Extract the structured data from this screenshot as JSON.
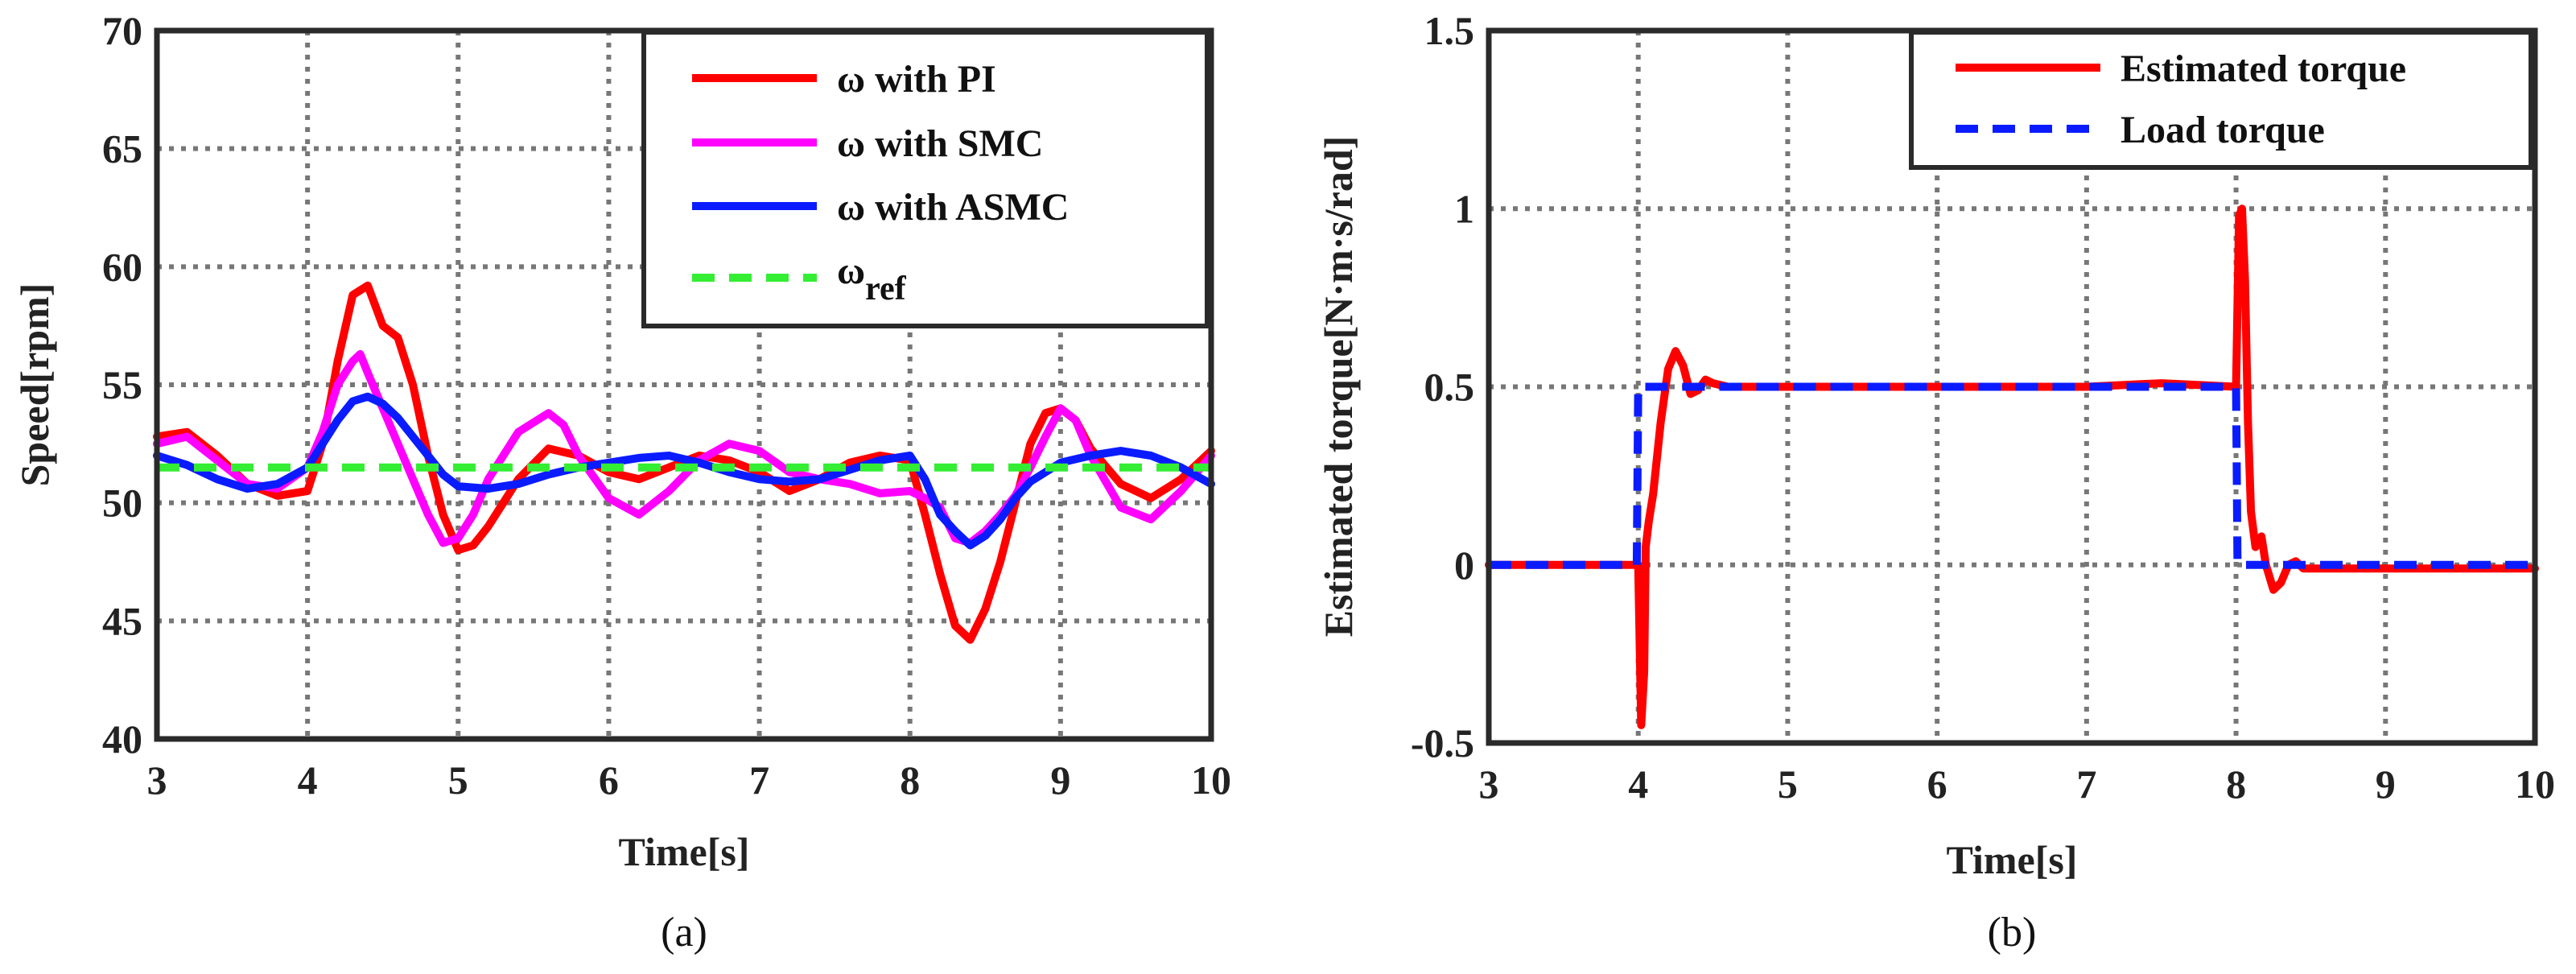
{
  "chart_data": [
    {
      "id": "a",
      "type": "line",
      "caption": "(a)",
      "xlabel": "Time[s]",
      "ylabel": "Speed[rpm]",
      "xlim": [
        3,
        10
      ],
      "ylim": [
        40,
        70
      ],
      "xticks": [
        "3",
        "4",
        "5",
        "6",
        "7",
        "8",
        "9",
        "10"
      ],
      "yticks": [
        "40",
        "45",
        "50",
        "55",
        "60",
        "65",
        "70"
      ],
      "grid": true,
      "legend_position": "top-right",
      "series": [
        {
          "name": "ω with PI",
          "legend": "ω with PI",
          "color": "#ff0000",
          "dash": "solid",
          "x": [
            3.0,
            3.2,
            3.4,
            3.6,
            3.8,
            4.0,
            4.1,
            4.2,
            4.3,
            4.4,
            4.5,
            4.6,
            4.7,
            4.8,
            4.9,
            5.0,
            5.1,
            5.2,
            5.4,
            5.6,
            5.8,
            6.0,
            6.2,
            6.4,
            6.6,
            6.8,
            7.0,
            7.2,
            7.4,
            7.6,
            7.8,
            8.0,
            8.1,
            8.2,
            8.3,
            8.4,
            8.5,
            8.6,
            8.7,
            8.8,
            8.9,
            9.0,
            9.1,
            9.2,
            9.4,
            9.6,
            9.8,
            10.0
          ],
          "y": [
            52.8,
            53.0,
            52.0,
            50.8,
            50.3,
            50.5,
            52.5,
            56.0,
            58.8,
            59.2,
            57.5,
            57.0,
            55.0,
            52.0,
            49.5,
            48.0,
            48.2,
            49.0,
            51.0,
            52.3,
            52.0,
            51.3,
            51.0,
            51.5,
            52.0,
            51.8,
            51.3,
            50.5,
            51.0,
            51.7,
            52.0,
            51.8,
            49.5,
            47.0,
            44.8,
            44.2,
            45.5,
            47.5,
            50.0,
            52.5,
            53.8,
            54.0,
            53.5,
            52.3,
            50.8,
            50.2,
            51.0,
            52.2
          ]
        },
        {
          "name": "ω with SMC",
          "legend": "ω with SMC",
          "color": "#ff00ff",
          "dash": "solid",
          "x": [
            3.0,
            3.2,
            3.4,
            3.6,
            3.8,
            4.0,
            4.1,
            4.2,
            4.3,
            4.35,
            4.4,
            4.5,
            4.6,
            4.7,
            4.8,
            4.9,
            5.0,
            5.1,
            5.2,
            5.4,
            5.6,
            5.7,
            5.8,
            6.0,
            6.2,
            6.4,
            6.6,
            6.8,
            7.0,
            7.2,
            7.4,
            7.6,
            7.8,
            8.0,
            8.1,
            8.2,
            8.3,
            8.4,
            8.5,
            8.6,
            8.7,
            8.8,
            8.9,
            9.0,
            9.1,
            9.2,
            9.4,
            9.6,
            9.8,
            10.0
          ],
          "y": [
            52.5,
            52.8,
            51.8,
            50.8,
            50.6,
            51.5,
            53.0,
            55.0,
            56.0,
            56.3,
            55.5,
            54.0,
            52.5,
            51.0,
            49.5,
            48.3,
            48.5,
            49.5,
            51.0,
            53.0,
            53.8,
            53.3,
            52.0,
            50.2,
            49.5,
            50.5,
            51.8,
            52.5,
            52.2,
            51.3,
            51.0,
            50.8,
            50.4,
            50.5,
            50.2,
            49.8,
            48.5,
            48.3,
            48.8,
            49.5,
            50.3,
            51.5,
            52.8,
            54.0,
            53.5,
            52.0,
            49.8,
            49.3,
            50.5,
            52.0
          ]
        },
        {
          "name": "ω with ASMC",
          "legend": "ω with ASMC",
          "color": "#0a1cff",
          "dash": "solid",
          "x": [
            3.0,
            3.2,
            3.4,
            3.6,
            3.8,
            4.0,
            4.1,
            4.2,
            4.3,
            4.4,
            4.5,
            4.6,
            4.7,
            4.8,
            4.9,
            5.0,
            5.2,
            5.4,
            5.6,
            5.8,
            6.0,
            6.2,
            6.4,
            6.6,
            6.8,
            7.0,
            7.2,
            7.4,
            7.6,
            7.8,
            8.0,
            8.1,
            8.2,
            8.3,
            8.4,
            8.5,
            8.6,
            8.7,
            8.8,
            9.0,
            9.2,
            9.4,
            9.6,
            9.8,
            10.0
          ],
          "y": [
            52.0,
            51.6,
            51.0,
            50.6,
            50.8,
            51.5,
            52.5,
            53.5,
            54.3,
            54.5,
            54.2,
            53.6,
            52.8,
            52.0,
            51.2,
            50.7,
            50.6,
            50.8,
            51.2,
            51.5,
            51.7,
            51.9,
            52.0,
            51.7,
            51.3,
            51.0,
            50.9,
            51.0,
            51.4,
            51.8,
            52.0,
            51.0,
            49.5,
            48.8,
            48.2,
            48.6,
            49.3,
            50.2,
            50.9,
            51.7,
            52.0,
            52.2,
            52.0,
            51.5,
            50.8
          ]
        },
        {
          "name": "ω_ref",
          "legend_main": "ω",
          "legend_sub": "ref",
          "color": "#33ee33",
          "dash": "dashed",
          "x": [
            3.0,
            10.0
          ],
          "y": [
            51.5,
            51.5
          ]
        }
      ]
    },
    {
      "id": "b",
      "type": "line",
      "caption": "(b)",
      "xlabel": "Time[s]",
      "ylabel": "Estimated torque[N·m·s/rad]",
      "xlim": [
        3,
        10
      ],
      "ylim": [
        -0.5,
        1.5
      ],
      "xticks": [
        "3",
        "4",
        "5",
        "6",
        "7",
        "8",
        "9",
        "10"
      ],
      "yticks": [
        "-0.5",
        "0",
        "0.5",
        "1",
        "1.5"
      ],
      "ytick_values": [
        -0.5,
        0,
        0.5,
        1,
        1.5
      ],
      "grid": true,
      "legend_position": "top-right",
      "series": [
        {
          "name": "Estimated torque",
          "legend": "Estimated torque",
          "color": "#ff0000",
          "dash": "solid",
          "x": [
            3.0,
            4.0,
            4.02,
            4.04,
            4.05,
            4.07,
            4.1,
            4.15,
            4.2,
            4.25,
            4.3,
            4.35,
            4.4,
            4.45,
            4.5,
            4.6,
            5.0,
            6.0,
            7.0,
            7.5,
            8.0,
            8.02,
            8.04,
            8.06,
            8.08,
            8.1,
            8.13,
            8.17,
            8.2,
            8.25,
            8.3,
            8.35,
            8.4,
            8.45,
            8.5,
            9.0,
            10.0
          ],
          "y": [
            0.0,
            0.0,
            -0.45,
            -0.3,
            0.05,
            0.12,
            0.2,
            0.4,
            0.55,
            0.6,
            0.56,
            0.48,
            0.49,
            0.52,
            0.51,
            0.5,
            0.5,
            0.5,
            0.5,
            0.51,
            0.5,
            0.98,
            1.0,
            0.8,
            0.4,
            0.15,
            0.05,
            0.08,
            0.0,
            -0.07,
            -0.05,
            0.0,
            0.01,
            -0.01,
            -0.01,
            -0.01,
            -0.01
          ]
        },
        {
          "name": "Load torque",
          "legend": "Load torque",
          "color": "#0a1cff",
          "dash": "dashed",
          "x": [
            3.0,
            3.99,
            4.0,
            8.0,
            8.01,
            10.0
          ],
          "y": [
            0.0,
            0.0,
            0.5,
            0.5,
            0.0,
            0.0
          ]
        }
      ]
    }
  ]
}
